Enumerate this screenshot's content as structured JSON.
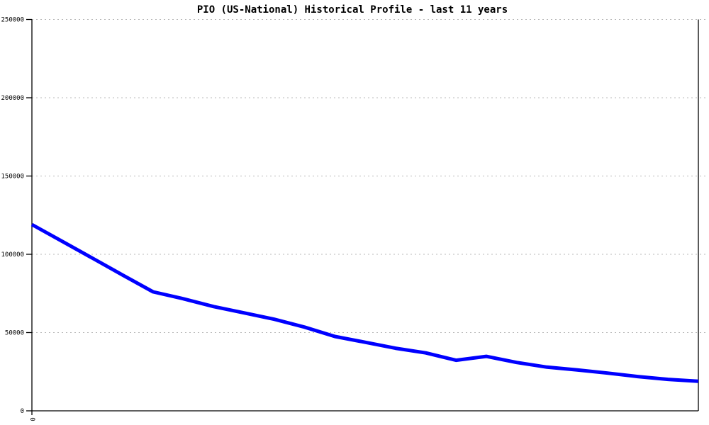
{
  "chart_data": {
    "type": "line",
    "title": "PIO (US-National) Historical Profile - last 11 years",
    "xlabel": "",
    "ylabel": "",
    "legend": "none",
    "grid": "horizontal dashed gridlines at y ticks, none at 0",
    "ylim": [
      0,
      250000
    ],
    "xlim_years": [
      0,
      11
    ],
    "y_ticks": [
      {
        "value": 0,
        "label": "0"
      },
      {
        "value": 50000,
        "label": "50000"
      },
      {
        "value": 100000,
        "label": "100000"
      },
      {
        "value": 150000,
        "label": "150000"
      },
      {
        "value": 200000,
        "label": "200000"
      },
      {
        "value": 250000,
        "label": "250000"
      }
    ],
    "x_ticks": [
      {
        "value": 0,
        "label": "0",
        "rotated": true
      }
    ],
    "x_years": [
      0,
      0.5,
      1,
      1.5,
      2,
      2.5,
      3,
      3.5,
      4,
      4.5,
      5,
      5.5,
      6,
      6.5,
      7,
      7.5,
      8,
      8.5,
      9,
      9.5,
      10,
      10.5,
      11
    ],
    "series": [
      {
        "name": "PIO (US-National)",
        "color": "#0000ff",
        "line_width": 5,
        "values": [
          119000,
          108300,
          97500,
          86700,
          76000,
          71600,
          66600,
          62600,
          58500,
          53500,
          47500,
          43800,
          40000,
          37000,
          32300,
          34800,
          30900,
          27900,
          26100,
          24100,
          21900,
          20100,
          18900
        ]
      }
    ]
  },
  "colors": {
    "background": "#ffffff",
    "axis": "#000000",
    "gridline": "#b8b8b8",
    "line": "#0000ff",
    "text": "#000000"
  }
}
